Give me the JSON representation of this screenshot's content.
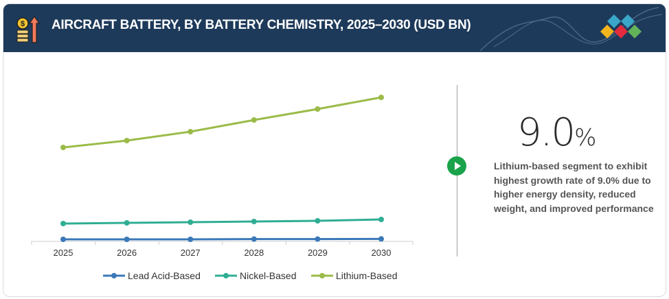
{
  "header": {
    "title": "AIRCRAFT BATTERY, BY BATTERY CHEMISTRY, 2025–2030 (USD BN)",
    "icon": "money-growth-icon",
    "logo": "diamond-logo"
  },
  "callout": {
    "value": "9.0",
    "unit": "%",
    "text": "Lithium-based segment to exhibit highest growth rate of 9.0% due to higher energy density, reduced weight, and improved performance"
  },
  "chart_data": {
    "type": "line",
    "title": "AIRCRAFT BATTERY, BY BATTERY CHEMISTRY, 2025–2030 (USD BN)",
    "categories": [
      "2025",
      "2026",
      "2027",
      "2028",
      "2029",
      "2030"
    ],
    "ylim": [
      0,
      11
    ],
    "grid": false,
    "legend": "bottom",
    "series": [
      {
        "name": "Lead Acid-Based",
        "color": "#3a78b8",
        "values": [
          0.1,
          0.1,
          0.1,
          0.12,
          0.12,
          0.13
        ]
      },
      {
        "name": "Nickel-Based",
        "color": "#2fae94",
        "values": [
          1.25,
          1.3,
          1.35,
          1.4,
          1.45,
          1.55
        ]
      },
      {
        "name": "Lithium-Based",
        "color": "#9bbb48",
        "values": [
          6.8,
          7.3,
          7.95,
          8.8,
          9.6,
          10.45
        ]
      }
    ]
  }
}
